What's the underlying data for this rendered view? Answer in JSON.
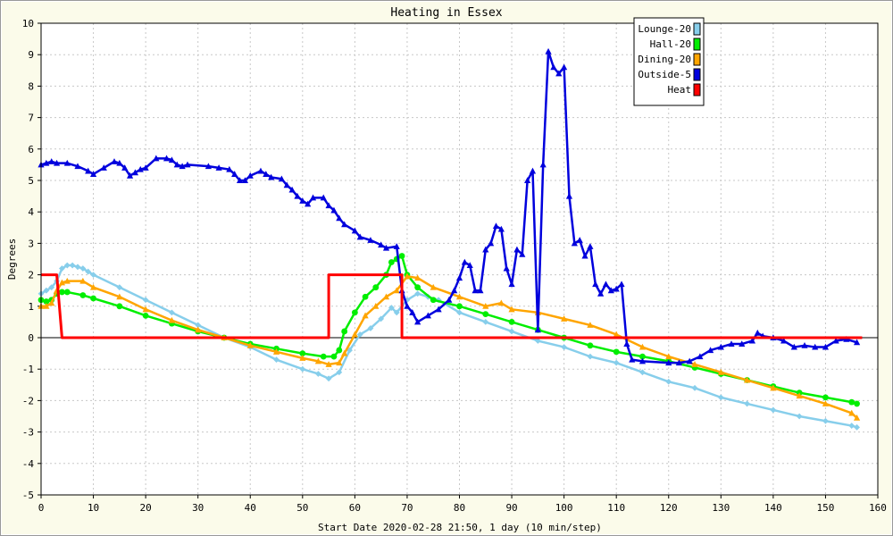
{
  "chart_data": {
    "type": "line",
    "title": "Heating in Essex",
    "xlabel": "Start Date 2020-02-28 21:50, 1 day (10 min/step)",
    "ylabel": "Degrees",
    "xlim": [
      0,
      160
    ],
    "ylim": [
      -5,
      10
    ],
    "x_ticks": [
      0,
      10,
      20,
      30,
      40,
      50,
      60,
      70,
      80,
      90,
      100,
      110,
      120,
      130,
      140,
      150,
      160
    ],
    "y_ticks": [
      -5,
      -4,
      -3,
      -2,
      -1,
      0,
      1,
      2,
      3,
      4,
      5,
      6,
      7,
      8,
      9,
      10
    ],
    "grid": true,
    "legend_position": "top-right",
    "series": [
      {
        "name": "Lounge-20",
        "color": "#87ceeb",
        "marker": "diamond",
        "points": [
          [
            0,
            1.4
          ],
          [
            1,
            1.5
          ],
          [
            2,
            1.6
          ],
          [
            3,
            1.8
          ],
          [
            4,
            2.2
          ],
          [
            5,
            2.3
          ],
          [
            6,
            2.3
          ],
          [
            7,
            2.25
          ],
          [
            8,
            2.2
          ],
          [
            9,
            2.1
          ],
          [
            10,
            2.0
          ],
          [
            15,
            1.6
          ],
          [
            20,
            1.2
          ],
          [
            25,
            0.8
          ],
          [
            30,
            0.4
          ],
          [
            35,
            0.0
          ],
          [
            40,
            -0.3
          ],
          [
            45,
            -0.7
          ],
          [
            50,
            -1.0
          ],
          [
            53,
            -1.15
          ],
          [
            55,
            -1.3
          ],
          [
            57,
            -1.1
          ],
          [
            59,
            -0.4
          ],
          [
            61,
            0.1
          ],
          [
            63,
            0.3
          ],
          [
            65,
            0.6
          ],
          [
            67,
            0.95
          ],
          [
            68,
            0.8
          ],
          [
            70,
            1.2
          ],
          [
            72,
            1.4
          ],
          [
            74,
            1.3
          ],
          [
            76,
            1.2
          ],
          [
            80,
            0.8
          ],
          [
            85,
            0.5
          ],
          [
            90,
            0.2
          ],
          [
            95,
            -0.1
          ],
          [
            100,
            -0.3
          ],
          [
            105,
            -0.6
          ],
          [
            110,
            -0.8
          ],
          [
            115,
            -1.1
          ],
          [
            120,
            -1.4
          ],
          [
            125,
            -1.6
          ],
          [
            130,
            -1.9
          ],
          [
            135,
            -2.1
          ],
          [
            140,
            -2.3
          ],
          [
            145,
            -2.5
          ],
          [
            150,
            -2.65
          ],
          [
            155,
            -2.8
          ],
          [
            156,
            -2.85
          ]
        ]
      },
      {
        "name": "Hall-20",
        "color": "#00ee00",
        "marker": "circle",
        "points": [
          [
            0,
            1.2
          ],
          [
            1,
            1.15
          ],
          [
            2,
            1.2
          ],
          [
            3,
            1.4
          ],
          [
            4,
            1.45
          ],
          [
            5,
            1.45
          ],
          [
            8,
            1.35
          ],
          [
            10,
            1.25
          ],
          [
            15,
            1.0
          ],
          [
            20,
            0.7
          ],
          [
            25,
            0.45
          ],
          [
            30,
            0.2
          ],
          [
            35,
            0.0
          ],
          [
            40,
            -0.2
          ],
          [
            45,
            -0.35
          ],
          [
            50,
            -0.5
          ],
          [
            54,
            -0.6
          ],
          [
            56,
            -0.6
          ],
          [
            57,
            -0.4
          ],
          [
            58,
            0.2
          ],
          [
            60,
            0.8
          ],
          [
            62,
            1.3
          ],
          [
            64,
            1.6
          ],
          [
            66,
            2.0
          ],
          [
            67,
            2.4
          ],
          [
            68,
            2.5
          ],
          [
            69,
            2.6
          ],
          [
            70,
            2.0
          ],
          [
            72,
            1.6
          ],
          [
            75,
            1.2
          ],
          [
            80,
            1.0
          ],
          [
            85,
            0.75
          ],
          [
            90,
            0.5
          ],
          [
            95,
            0.25
          ],
          [
            100,
            0.0
          ],
          [
            105,
            -0.25
          ],
          [
            110,
            -0.45
          ],
          [
            115,
            -0.6
          ],
          [
            120,
            -0.75
          ],
          [
            125,
            -0.95
          ],
          [
            130,
            -1.15
          ],
          [
            135,
            -1.35
          ],
          [
            140,
            -1.55
          ],
          [
            145,
            -1.75
          ],
          [
            150,
            -1.9
          ],
          [
            155,
            -2.05
          ],
          [
            156,
            -2.1
          ]
        ]
      },
      {
        "name": "Dining-20",
        "color": "#ffa500",
        "marker": "triangle",
        "points": [
          [
            0,
            1.0
          ],
          [
            1,
            1.0
          ],
          [
            2,
            1.1
          ],
          [
            3,
            1.5
          ],
          [
            4,
            1.75
          ],
          [
            5,
            1.8
          ],
          [
            8,
            1.8
          ],
          [
            10,
            1.6
          ],
          [
            15,
            1.3
          ],
          [
            20,
            0.9
          ],
          [
            25,
            0.55
          ],
          [
            30,
            0.25
          ],
          [
            35,
            0.0
          ],
          [
            40,
            -0.25
          ],
          [
            45,
            -0.45
          ],
          [
            50,
            -0.65
          ],
          [
            53,
            -0.75
          ],
          [
            55,
            -0.85
          ],
          [
            57,
            -0.8
          ],
          [
            58,
            -0.5
          ],
          [
            60,
            0.1
          ],
          [
            62,
            0.7
          ],
          [
            64,
            1.0
          ],
          [
            66,
            1.3
          ],
          [
            68,
            1.5
          ],
          [
            70,
            1.95
          ],
          [
            72,
            1.9
          ],
          [
            75,
            1.6
          ],
          [
            80,
            1.3
          ],
          [
            85,
            1.0
          ],
          [
            88,
            1.1
          ],
          [
            90,
            0.9
          ],
          [
            95,
            0.8
          ],
          [
            100,
            0.6
          ],
          [
            105,
            0.4
          ],
          [
            110,
            0.1
          ],
          [
            115,
            -0.3
          ],
          [
            120,
            -0.6
          ],
          [
            125,
            -0.85
          ],
          [
            130,
            -1.1
          ],
          [
            135,
            -1.35
          ],
          [
            140,
            -1.6
          ],
          [
            145,
            -1.85
          ],
          [
            150,
            -2.1
          ],
          [
            155,
            -2.4
          ],
          [
            156,
            -2.55
          ]
        ]
      },
      {
        "name": "Outside-5",
        "color": "#0000dd",
        "marker": "triangle",
        "points": [
          [
            0,
            5.5
          ],
          [
            1,
            5.55
          ],
          [
            2,
            5.6
          ],
          [
            3,
            5.55
          ],
          [
            5,
            5.55
          ],
          [
            7,
            5.45
          ],
          [
            9,
            5.3
          ],
          [
            10,
            5.2
          ],
          [
            12,
            5.4
          ],
          [
            14,
            5.6
          ],
          [
            15,
            5.55
          ],
          [
            16,
            5.4
          ],
          [
            17,
            5.15
          ],
          [
            18,
            5.25
          ],
          [
            19,
            5.35
          ],
          [
            20,
            5.4
          ],
          [
            22,
            5.7
          ],
          [
            24,
            5.7
          ],
          [
            25,
            5.65
          ],
          [
            26,
            5.5
          ],
          [
            27,
            5.45
          ],
          [
            28,
            5.5
          ],
          [
            32,
            5.45
          ],
          [
            34,
            5.4
          ],
          [
            36,
            5.35
          ],
          [
            37,
            5.2
          ],
          [
            38,
            5.0
          ],
          [
            39,
            5.0
          ],
          [
            40,
            5.15
          ],
          [
            42,
            5.3
          ],
          [
            43,
            5.2
          ],
          [
            44,
            5.1
          ],
          [
            46,
            5.05
          ],
          [
            47,
            4.85
          ],
          [
            48,
            4.7
          ],
          [
            49,
            4.5
          ],
          [
            50,
            4.35
          ],
          [
            51,
            4.25
          ],
          [
            52,
            4.45
          ],
          [
            54,
            4.45
          ],
          [
            55,
            4.2
          ],
          [
            56,
            4.05
          ],
          [
            57,
            3.8
          ],
          [
            58,
            3.6
          ],
          [
            60,
            3.4
          ],
          [
            61,
            3.2
          ],
          [
            63,
            3.1
          ],
          [
            65,
            2.95
          ],
          [
            66,
            2.85
          ],
          [
            68,
            2.9
          ],
          [
            69,
            1.5
          ],
          [
            70,
            1.0
          ],
          [
            71,
            0.8
          ],
          [
            72,
            0.5
          ],
          [
            74,
            0.7
          ],
          [
            76,
            0.9
          ],
          [
            78,
            1.2
          ],
          [
            79,
            1.5
          ],
          [
            80,
            1.9
          ],
          [
            81,
            2.4
          ],
          [
            82,
            2.3
          ],
          [
            83,
            1.5
          ],
          [
            84,
            1.5
          ],
          [
            85,
            2.8
          ],
          [
            86,
            3.0
          ],
          [
            87,
            3.55
          ],
          [
            88,
            3.45
          ],
          [
            89,
            2.2
          ],
          [
            90,
            1.7
          ],
          [
            91,
            2.8
          ],
          [
            92,
            2.65
          ],
          [
            93,
            5.0
          ],
          [
            94,
            5.3
          ],
          [
            95,
            0.25
          ],
          [
            96,
            5.5
          ],
          [
            97,
            9.1
          ],
          [
            98,
            8.6
          ],
          [
            99,
            8.4
          ],
          [
            100,
            8.6
          ],
          [
            101,
            4.5
          ],
          [
            102,
            3.0
          ],
          [
            103,
            3.1
          ],
          [
            104,
            2.6
          ],
          [
            105,
            2.9
          ],
          [
            106,
            1.7
          ],
          [
            107,
            1.4
          ],
          [
            108,
            1.7
          ],
          [
            109,
            1.5
          ],
          [
            110,
            1.55
          ],
          [
            111,
            1.7
          ],
          [
            112,
            -0.2
          ],
          [
            113,
            -0.7
          ],
          [
            115,
            -0.75
          ],
          [
            120,
            -0.8
          ],
          [
            122,
            -0.8
          ],
          [
            124,
            -0.75
          ],
          [
            126,
            -0.6
          ],
          [
            128,
            -0.4
          ],
          [
            130,
            -0.3
          ],
          [
            132,
            -0.2
          ],
          [
            134,
            -0.2
          ],
          [
            136,
            -0.1
          ],
          [
            137,
            0.15
          ],
          [
            138,
            0.05
          ],
          [
            140,
            0.0
          ],
          [
            142,
            -0.1
          ],
          [
            144,
            -0.3
          ],
          [
            146,
            -0.25
          ],
          [
            148,
            -0.3
          ],
          [
            150,
            -0.3
          ],
          [
            152,
            -0.1
          ],
          [
            154,
            -0.05
          ],
          [
            156,
            -0.15
          ]
        ]
      },
      {
        "name": "Heat",
        "color": "#ff0000",
        "marker": "none",
        "step": true,
        "points": [
          [
            0,
            2
          ],
          [
            3,
            2
          ],
          [
            4,
            0
          ],
          [
            55,
            0
          ],
          [
            55,
            2
          ],
          [
            69,
            2
          ],
          [
            69,
            0
          ],
          [
            157,
            0
          ]
        ]
      }
    ]
  }
}
